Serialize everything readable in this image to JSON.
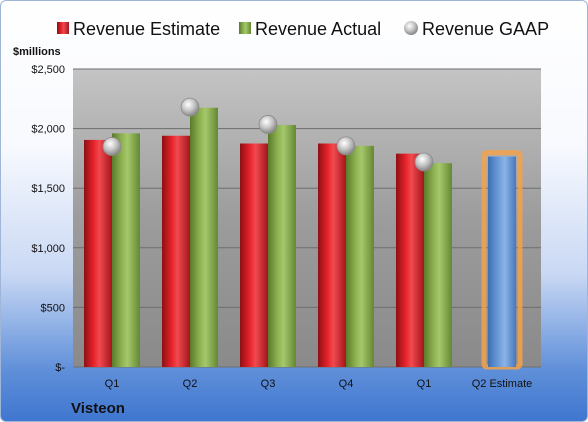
{
  "chart_data": {
    "type": "bar",
    "unit_label": "$millions",
    "company": "Visteon",
    "categories": [
      "Q1",
      "Q2",
      "Q3",
      "Q4",
      "Q1",
      "Q2 Estimate"
    ],
    "y_ticks": [
      "$-",
      "$500",
      "$1,000",
      "$1,500",
      "$2,000",
      "$2,500"
    ],
    "ylim": [
      0,
      2500
    ],
    "grid": true,
    "legend_position": "top",
    "series": [
      {
        "name": "Revenue Estimate",
        "type": "bar",
        "color": "#e8232b",
        "values": [
          1905,
          1940,
          1875,
          1875,
          1790,
          null
        ]
      },
      {
        "name": "Revenue Actual",
        "type": "bar",
        "color": "#8db350",
        "values": [
          1960,
          2175,
          2030,
          1855,
          1710,
          null
        ]
      },
      {
        "name": "Revenue GAAP",
        "type": "scatter",
        "color": "#b8b8b8",
        "values": [
          1850,
          2180,
          2035,
          1855,
          1720,
          null
        ]
      },
      {
        "name": "Q2 Estimate",
        "type": "bar",
        "color": "#6f9fdc",
        "highlight": "#f3a24a",
        "values": [
          null,
          null,
          null,
          null,
          null,
          1765
        ]
      }
    ]
  }
}
